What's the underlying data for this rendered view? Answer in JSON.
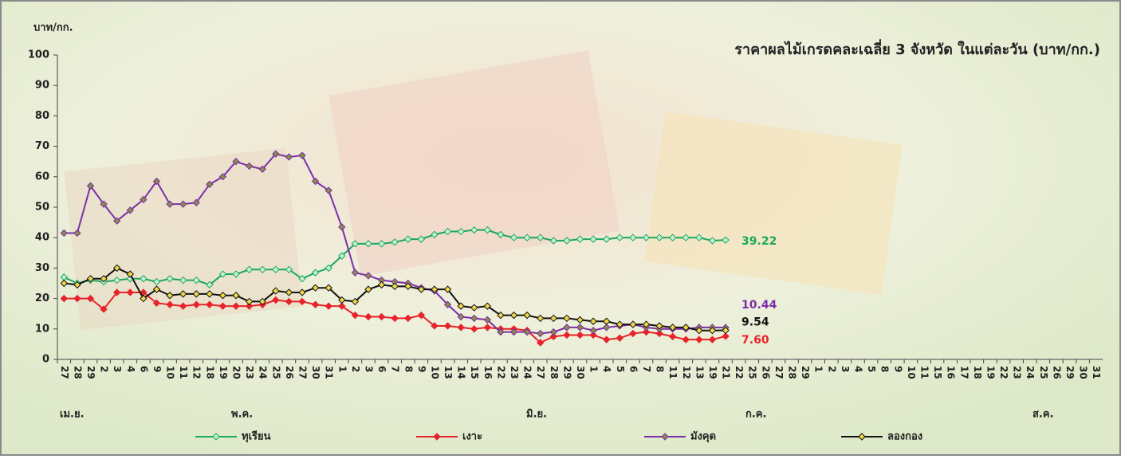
{
  "chart_data": {
    "type": "line",
    "title": "ราคาผลไม้เกรดคละเฉลี่ย 3 จังหวัด ในแต่ละวัน (บาท/กก.)",
    "y_label": "บาท/กก.",
    "categories": [
      "27",
      "28",
      "29",
      "2",
      "3",
      "4",
      "6",
      "9",
      "10",
      "11",
      "12",
      "18",
      "19",
      "20",
      "23",
      "24",
      "25",
      "26",
      "27",
      "30",
      "31",
      "1",
      "2",
      "3",
      "6",
      "7",
      "8",
      "9",
      "10",
      "13",
      "14",
      "15",
      "16",
      "22",
      "23",
      "24",
      "27",
      "28",
      "29",
      "30",
      "1",
      "4",
      "5",
      "6",
      "7",
      "8",
      "11",
      "12",
      "13",
      "19",
      "21",
      "22",
      "25",
      "26",
      "27",
      "28",
      "29",
      "1",
      "2",
      "3",
      "4",
      "5",
      "8",
      "9",
      "10",
      "11",
      "15",
      "16",
      "17",
      "18",
      "19",
      "22",
      "23",
      "24",
      "25",
      "26",
      "29",
      "30",
      "31"
    ],
    "months": [
      "เม.ย.",
      "พ.ค.",
      "มิ.ย.",
      "ก.ค.",
      "ส.ค."
    ],
    "ylim": [
      0,
      100
    ],
    "yticks": [
      0,
      10,
      20,
      30,
      40,
      50,
      60,
      70,
      80,
      90,
      100
    ],
    "legend": "bottom",
    "series": [
      {
        "name": "ทุเรียน",
        "color": "#1aa85a",
        "marker_fill": "#c8f0d8",
        "values": [
          27,
          25,
          26,
          25.5,
          26,
          26.5,
          26.5,
          25.5,
          26.5,
          26,
          26,
          24.5,
          28,
          28,
          29.5,
          29.5,
          29.5,
          29.5,
          26.5,
          28.5,
          30,
          34,
          38,
          38,
          38,
          38.5,
          39.5,
          39.5,
          41,
          42,
          42,
          42.5,
          42.5,
          41,
          40,
          40,
          40,
          39,
          39,
          39.5,
          39.5,
          39.5,
          40,
          40,
          40,
          40,
          40,
          40,
          40,
          39,
          39.22,
          null,
          null,
          null,
          null,
          null,
          null,
          null,
          null,
          null,
          null,
          null,
          null,
          null,
          null,
          null,
          null,
          null,
          null,
          null,
          null,
          null,
          null,
          null,
          null,
          null,
          null,
          null,
          null
        ],
        "value_labels": [
          null,
          null,
          null,
          null,
          null,
          null,
          null,
          null,
          null,
          null,
          null,
          null,
          null,
          null,
          null,
          null,
          null,
          null,
          null,
          null,
          null,
          null,
          null,
          null,
          null,
          null,
          null,
          null,
          null,
          null,
          null,
          null,
          null,
          null,
          null,
          null,
          null,
          null,
          null,
          null,
          null,
          null,
          null,
          null,
          null,
          null,
          null,
          null,
          null,
          null,
          "39.22",
          null,
          null,
          null,
          null,
          null,
          null,
          null,
          null,
          null,
          null,
          null,
          null,
          null,
          null,
          null,
          null,
          null,
          null,
          null,
          null,
          null,
          null,
          null,
          null,
          null,
          null,
          null,
          null
        ]
      },
      {
        "name": "เงาะ",
        "color": "#e8232a",
        "marker_fill": "#e8232a",
        "values": [
          20,
          20,
          20,
          16.5,
          22,
          22,
          22,
          18.5,
          18,
          17.5,
          18,
          18,
          17.5,
          17.5,
          17.5,
          18,
          19.5,
          19,
          19,
          18,
          17.5,
          17.5,
          14.5,
          14,
          14,
          13.5,
          13.5,
          14.5,
          11,
          11,
          10.5,
          10,
          10.5,
          10,
          10,
          9.5,
          5.5,
          7.5,
          8,
          8,
          8,
          6.5,
          7,
          8.5,
          9,
          8.5,
          7.5,
          6.5,
          6.5,
          6.5,
          7.6,
          null,
          null,
          null,
          null,
          null,
          null,
          null,
          null,
          null,
          null,
          null,
          null,
          null,
          null,
          null,
          null,
          null,
          null,
          null,
          null,
          null,
          null,
          null,
          null,
          null,
          null,
          null,
          null
        ],
        "value_labels": [
          null,
          null,
          null,
          null,
          null,
          null,
          null,
          null,
          null,
          null,
          null,
          null,
          null,
          null,
          null,
          null,
          null,
          null,
          null,
          null,
          null,
          null,
          null,
          null,
          null,
          null,
          null,
          null,
          null,
          null,
          null,
          null,
          null,
          null,
          null,
          null,
          null,
          null,
          null,
          null,
          null,
          null,
          null,
          null,
          null,
          null,
          null,
          null,
          null,
          null,
          "7.60",
          null,
          null,
          null,
          null,
          null,
          null,
          null,
          null,
          null,
          null,
          null,
          null,
          null,
          null,
          null,
          null,
          null,
          null,
          null,
          null,
          null,
          null,
          null,
          null,
          null,
          null,
          null,
          null
        ]
      },
      {
        "name": "มังคุด",
        "color": "#7b2fa8",
        "marker_fill": "#8a8a4a",
        "values": [
          41.5,
          41.5,
          57,
          51,
          45.5,
          49,
          52.5,
          58.5,
          51,
          51,
          51.5,
          57.5,
          60,
          65,
          63.5,
          62.5,
          67.5,
          66.5,
          67,
          58.5,
          55.5,
          43.5,
          28.5,
          27.5,
          26,
          25.5,
          25,
          23.5,
          22.5,
          18,
          14,
          13.5,
          13,
          9,
          9,
          9,
          8.5,
          9,
          10.5,
          10.5,
          9.5,
          10.5,
          11,
          11.5,
          10.5,
          10,
          10,
          10,
          10.5,
          10.5,
          10.44,
          null,
          null,
          null,
          null,
          null,
          null,
          null,
          null,
          null,
          null,
          null,
          null,
          null,
          null,
          null,
          null,
          null,
          null,
          null,
          null,
          null,
          null,
          null,
          null,
          null,
          null,
          null,
          null
        ],
        "value_labels": [
          null,
          null,
          null,
          null,
          null,
          null,
          null,
          null,
          null,
          null,
          null,
          null,
          null,
          null,
          null,
          null,
          null,
          null,
          null,
          null,
          null,
          null,
          null,
          null,
          null,
          null,
          null,
          null,
          null,
          null,
          null,
          null,
          null,
          null,
          null,
          null,
          null,
          null,
          null,
          null,
          null,
          null,
          null,
          null,
          null,
          null,
          null,
          null,
          null,
          null,
          "10.44",
          null,
          null,
          null,
          null,
          null,
          null,
          null,
          null,
          null,
          null,
          null,
          null,
          null,
          null,
          null,
          null,
          null,
          null,
          null,
          null,
          null,
          null,
          null,
          null,
          null,
          null,
          null,
          null
        ]
      },
      {
        "name": "ลองกอง",
        "color": "#111111",
        "marker_fill": "#f0d84a",
        "values": [
          25,
          24.5,
          26.5,
          26.5,
          30,
          28,
          20,
          23,
          21,
          21.5,
          21.5,
          21.5,
          21,
          21,
          19,
          19,
          22.5,
          22,
          22,
          23.5,
          23.5,
          19.5,
          19,
          23,
          24.5,
          24,
          24,
          23,
          23,
          23,
          17.5,
          17,
          17.5,
          14.5,
          14.5,
          14.5,
          13.5,
          13.5,
          13.5,
          13,
          12.5,
          12.5,
          11.5,
          11.5,
          11.5,
          11,
          10.5,
          10.5,
          9.5,
          9.5,
          9.54,
          null,
          null,
          null,
          null,
          null,
          null,
          null,
          null,
          null,
          null,
          null,
          null,
          null,
          null,
          null,
          null,
          null,
          null,
          null,
          null,
          null,
          null,
          null,
          null,
          null,
          null,
          null,
          null
        ],
        "value_labels": [
          null,
          null,
          null,
          null,
          null,
          null,
          null,
          null,
          null,
          null,
          null,
          null,
          null,
          null,
          null,
          null,
          null,
          null,
          null,
          null,
          null,
          null,
          null,
          null,
          null,
          null,
          null,
          null,
          null,
          null,
          null,
          null,
          null,
          null,
          null,
          null,
          null,
          null,
          null,
          null,
          null,
          null,
          null,
          null,
          null,
          null,
          null,
          null,
          null,
          null,
          "9.54",
          null,
          null,
          null,
          null,
          null,
          null,
          null,
          null,
          null,
          null,
          null,
          null,
          null,
          null,
          null,
          null,
          null,
          null,
          null,
          null,
          null,
          null,
          null,
          null,
          null,
          null,
          null,
          null
        ]
      }
    ]
  }
}
